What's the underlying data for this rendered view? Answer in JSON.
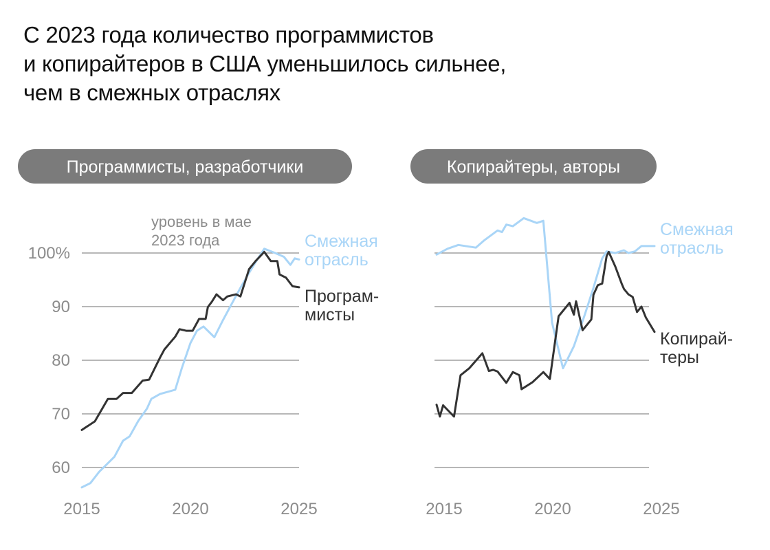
{
  "headline": [
    "С 2023 года количество программистов",
    "и копирайтеров в США уменьшилось сильнее,",
    "чем в смежных отраслях"
  ],
  "colors": {
    "related": "#a9d5f7",
    "main": "#333333",
    "pill": "#7b7b7b",
    "grid": "#8c8c8c",
    "axis_text": "#8c8c8c"
  },
  "chart_data": [
    {
      "type": "line",
      "title": "Программисты, разработчики",
      "x_unit": "year",
      "xlim": [
        2015,
        2025
      ],
      "ylim": [
        56,
        104
      ],
      "x_ticks": [
        "2015",
        "2020",
        "2025"
      ],
      "y_ticks": [
        "100%",
        "90",
        "80",
        "70",
        "60"
      ],
      "y_tick_values": [
        100,
        90,
        80,
        70,
        60
      ],
      "annotation": [
        "уровень в мае",
        "2023 года"
      ],
      "series": [
        {
          "name": "Смежная отрасль",
          "label_lines": [
            "Смежная",
            "отрасль"
          ],
          "color_key": "related",
          "points": [
            [
              2015,
              56.3
            ],
            [
              2015.4,
              57.1
            ],
            [
              2015.8,
              59.2
            ],
            [
              2016.2,
              60.8
            ],
            [
              2016.5,
              62.0
            ],
            [
              2016.9,
              65.0
            ],
            [
              2017.2,
              65.8
            ],
            [
              2017.6,
              68.7
            ],
            [
              2018.0,
              71.0
            ],
            [
              2018.2,
              72.8
            ],
            [
              2018.6,
              73.7
            ],
            [
              2019.3,
              74.5
            ],
            [
              2019.6,
              78.5
            ],
            [
              2020.0,
              83.2
            ],
            [
              2020.3,
              85.5
            ],
            [
              2020.6,
              86.3
            ],
            [
              2021.1,
              84.3
            ],
            [
              2021.5,
              87.5
            ],
            [
              2021.9,
              90.5
            ],
            [
              2022.3,
              93.5
            ],
            [
              2022.7,
              96.3
            ],
            [
              2023.0,
              98.3
            ],
            [
              2023.4,
              100.8
            ],
            [
              2023.9,
              100.0
            ],
            [
              2024.3,
              99.3
            ],
            [
              2024.6,
              97.8
            ],
            [
              2024.8,
              99.0
            ],
            [
              2025.0,
              98.8
            ]
          ]
        },
        {
          "name": "Программисты",
          "label_lines": [
            "Програм-",
            "мисты"
          ],
          "color_key": "main",
          "points": [
            [
              2015,
              67.0
            ],
            [
              2015.6,
              68.6
            ],
            [
              2016.2,
              72.8
            ],
            [
              2016.6,
              72.8
            ],
            [
              2016.9,
              73.9
            ],
            [
              2017.3,
              73.9
            ],
            [
              2017.8,
              76.2
            ],
            [
              2018.1,
              76.4
            ],
            [
              2018.6,
              80.5
            ],
            [
              2018.8,
              82.0
            ],
            [
              2019.3,
              84.4
            ],
            [
              2019.5,
              85.8
            ],
            [
              2019.8,
              85.5
            ],
            [
              2020.1,
              85.5
            ],
            [
              2020.4,
              87.7
            ],
            [
              2020.7,
              87.7
            ],
            [
              2020.8,
              89.9
            ],
            [
              2021.0,
              91.0
            ],
            [
              2021.2,
              92.3
            ],
            [
              2021.5,
              91.2
            ],
            [
              2021.7,
              91.9
            ],
            [
              2022.1,
              92.3
            ],
            [
              2022.3,
              91.9
            ],
            [
              2022.7,
              97.0
            ],
            [
              2023.0,
              98.5
            ],
            [
              2023.4,
              100.2
            ],
            [
              2023.7,
              98.5
            ],
            [
              2024.0,
              98.5
            ],
            [
              2024.1,
              96.0
            ],
            [
              2024.4,
              95.4
            ],
            [
              2024.7,
              93.8
            ],
            [
              2025.0,
              93.6
            ]
          ]
        }
      ]
    },
    {
      "type": "line",
      "title": "Копирайтеры, авторы",
      "x_unit": "year",
      "xlim": [
        2015,
        2025
      ],
      "ylim": [
        56,
        104
      ],
      "x_ticks": [
        "2015",
        "2020",
        "2025"
      ],
      "y_tick_values": [
        100,
        90,
        80,
        70,
        60
      ],
      "series": [
        {
          "name": "Смежная отрасль",
          "label_lines": [
            "Смежная",
            "отрасль"
          ],
          "color_key": "related",
          "points": [
            [
              2015,
              99.7
            ],
            [
              2015.5,
              100.8
            ],
            [
              2016.0,
              101.5
            ],
            [
              2016.8,
              101.0
            ],
            [
              2017.2,
              102.4
            ],
            [
              2017.8,
              104.2
            ],
            [
              2018.0,
              103.9
            ],
            [
              2018.2,
              105.3
            ],
            [
              2018.5,
              105.0
            ],
            [
              2019.0,
              106.5
            ],
            [
              2019.6,
              105.6
            ],
            [
              2019.9,
              106.0
            ],
            [
              2020.3,
              87.0
            ],
            [
              2020.8,
              78.5
            ],
            [
              2021.3,
              82.6
            ],
            [
              2021.8,
              88.5
            ],
            [
              2022.2,
              93.5
            ],
            [
              2022.6,
              99.0
            ],
            [
              2022.8,
              100.3
            ],
            [
              2023.2,
              100.0
            ],
            [
              2023.6,
              100.5
            ],
            [
              2023.8,
              100.0
            ],
            [
              2024.1,
              100.3
            ],
            [
              2024.4,
              101.3
            ],
            [
              2024.7,
              101.3
            ],
            [
              2025.0,
              101.3
            ]
          ]
        },
        {
          "name": "Копирайтеры",
          "label_lines": [
            "Копирай-",
            "теры"
          ],
          "color_key": "main",
          "points": [
            [
              2015,
              71.7
            ],
            [
              2015.15,
              69.5
            ],
            [
              2015.3,
              71.6
            ],
            [
              2015.8,
              69.5
            ],
            [
              2016.1,
              77.2
            ],
            [
              2016.5,
              78.5
            ],
            [
              2017.1,
              81.3
            ],
            [
              2017.4,
              78.0
            ],
            [
              2017.6,
              78.2
            ],
            [
              2017.8,
              77.9
            ],
            [
              2018.2,
              75.8
            ],
            [
              2018.5,
              77.8
            ],
            [
              2018.8,
              77.2
            ],
            [
              2018.9,
              74.6
            ],
            [
              2019.4,
              75.9
            ],
            [
              2019.9,
              77.8
            ],
            [
              2020.2,
              76.5
            ],
            [
              2020.6,
              88.2
            ],
            [
              2021.1,
              90.7
            ],
            [
              2021.3,
              88.5
            ],
            [
              2021.4,
              91.0
            ],
            [
              2021.7,
              85.6
            ],
            [
              2022.1,
              87.6
            ],
            [
              2022.2,
              92.2
            ],
            [
              2022.4,
              94.0
            ],
            [
              2022.6,
              94.3
            ],
            [
              2022.8,
              99.4
            ],
            [
              2022.9,
              100.2
            ],
            [
              2023.2,
              97.5
            ],
            [
              2023.5,
              94.2
            ],
            [
              2023.6,
              93.3
            ],
            [
              2023.8,
              92.3
            ],
            [
              2024.0,
              91.8
            ],
            [
              2024.2,
              89.0
            ],
            [
              2024.4,
              90.0
            ],
            [
              2024.6,
              88.0
            ],
            [
              2025.0,
              85.3
            ]
          ]
        }
      ]
    }
  ]
}
